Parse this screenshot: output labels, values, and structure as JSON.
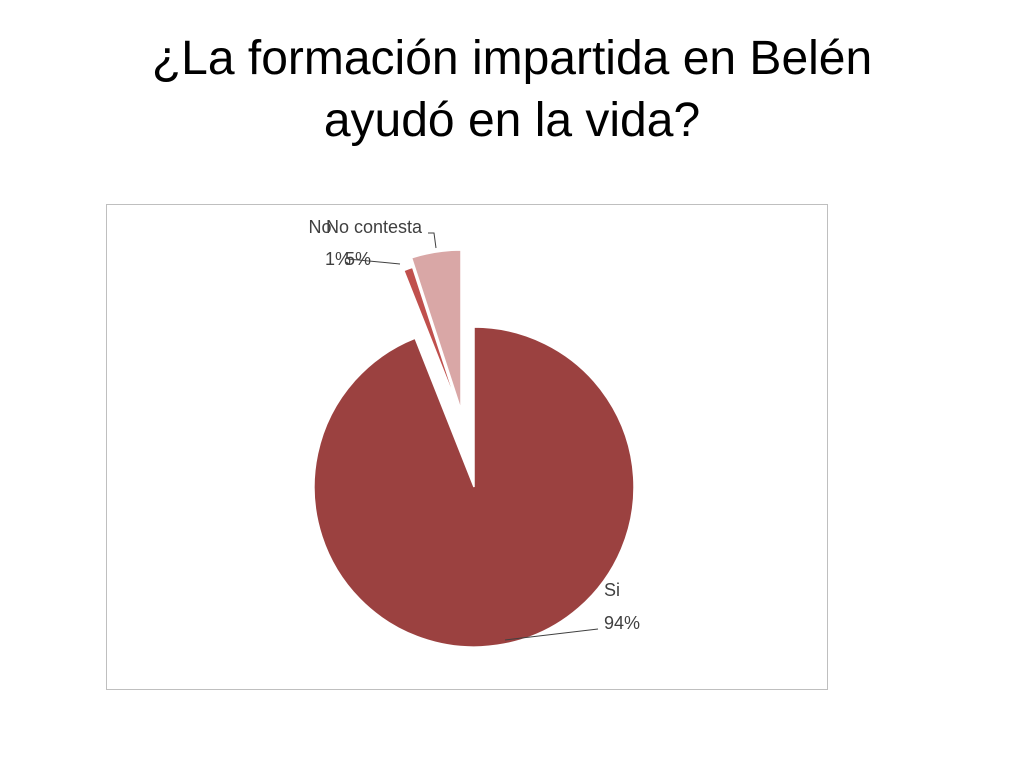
{
  "slide": {
    "title_line1": "¿La formación impartida en Belén",
    "title_line2": "ayudó en la vida?"
  },
  "chart_data": {
    "type": "pie",
    "title": "¿La formación impartida en Belén ayudó en la vida?",
    "exploded": true,
    "start_angle_deg": 0,
    "direction": "clockwise",
    "slices": [
      {
        "label": "Si",
        "value": 94,
        "value_label": "94%",
        "color": "#9b4140"
      },
      {
        "label": "No",
        "value": 1,
        "value_label": "1%",
        "color": "#c0504d"
      },
      {
        "label": "No contesta",
        "value": 5,
        "value_label": "5%",
        "color": "#d9a7a6"
      }
    ],
    "legend": "none"
  }
}
